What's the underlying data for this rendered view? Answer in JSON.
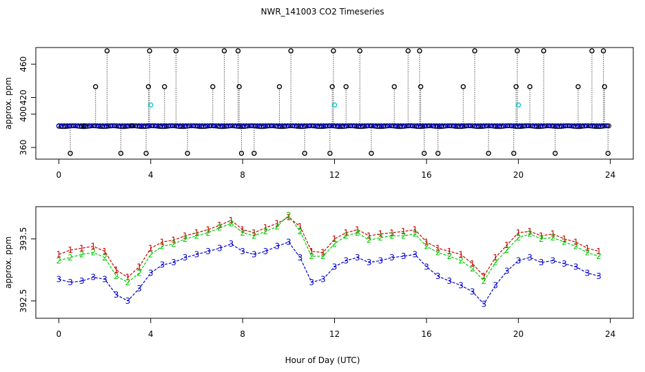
{
  "title": "NWR_141003  CO2 Timeseries",
  "xlabel": "Hour of Day (UTC)",
  "chart_data": [
    {
      "type": "scatter",
      "ylabel": "approx. ppm",
      "xlim": [
        -1,
        25
      ],
      "ylim": [
        346,
        480
      ],
      "xticks": [
        0,
        4,
        8,
        12,
        16,
        20,
        24
      ],
      "yticks": [
        360,
        400,
        420,
        460
      ],
      "grid": false,
      "colors": {
        "raw": "#000000",
        "mean": "#0000cc",
        "cyan": "#00cccc"
      },
      "series": [
        {
          "values": [
            [
              0.5,
              353
            ],
            [
              1.1,
              386
            ],
            [
              1.6,
              433
            ],
            [
              2.1,
              476
            ],
            [
              2.7,
              353
            ],
            [
              3.2,
              386
            ],
            [
              3.8,
              353
            ],
            [
              3.9,
              433
            ],
            [
              3.95,
              476
            ],
            [
              4.6,
              433
            ],
            [
              5.1,
              476
            ],
            [
              5.6,
              353
            ],
            [
              6.7,
              433
            ],
            [
              7.2,
              476
            ],
            [
              7.8,
              476
            ],
            [
              7.85,
              433
            ],
            [
              7.95,
              353
            ],
            [
              8.5,
              353
            ],
            [
              9.6,
              433
            ],
            [
              10.1,
              476
            ],
            [
              10.7,
              353
            ],
            [
              11.8,
              353
            ],
            [
              11.9,
              433
            ],
            [
              11.95,
              476
            ],
            [
              12.5,
              433
            ],
            [
              13.1,
              476
            ],
            [
              13.6,
              353
            ],
            [
              14.6,
              433
            ],
            [
              15.2,
              476
            ],
            [
              15.7,
              476
            ],
            [
              15.75,
              433
            ],
            [
              15.9,
              353
            ],
            [
              16.5,
              353
            ],
            [
              17.6,
              433
            ],
            [
              18.1,
              476
            ],
            [
              18.7,
              353
            ],
            [
              19.8,
              353
            ],
            [
              19.9,
              433
            ],
            [
              19.95,
              476
            ],
            [
              20.5,
              433
            ],
            [
              21.1,
              476
            ],
            [
              21.6,
              353
            ],
            [
              22.6,
              433
            ],
            [
              23.2,
              476
            ],
            [
              23.7,
              476
            ],
            [
              23.75,
              433
            ],
            [
              23.9,
              353
            ]
          ]
        },
        {
          "values": [
            [
              4.0,
              411
            ],
            [
              12.0,
              411
            ],
            [
              20.0,
              411
            ]
          ]
        }
      ],
      "baseline": 386
    },
    {
      "type": "line",
      "ylabel": "approx. ppm",
      "xlim": [
        -1,
        25
      ],
      "ylim": [
        392.22,
        394.02
      ],
      "xticks": [
        0,
        4,
        8,
        12,
        16,
        20,
        24
      ],
      "yticks": [
        392.5,
        393.5
      ],
      "grid": false,
      "series": [
        {
          "marker": "1",
          "color": "#cc0000",
          "x": [
            0,
            0.5,
            1,
            1.5,
            2,
            2.5,
            3,
            3.5,
            4,
            4.5,
            5,
            5.5,
            6,
            6.5,
            7,
            7.5,
            8,
            8.5,
            9,
            9.5,
            10,
            10.5,
            11,
            11.5,
            12,
            12.5,
            13,
            13.5,
            14,
            14.5,
            15,
            15.5,
            16,
            16.5,
            17,
            17.5,
            18,
            18.5,
            19,
            19.5,
            20,
            20.5,
            21,
            21.5,
            22,
            22.5,
            23,
            23.5
          ],
          "values": [
            393.25,
            393.32,
            393.35,
            393.38,
            393.3,
            393.0,
            392.88,
            393.05,
            393.35,
            393.45,
            393.48,
            393.55,
            393.6,
            393.65,
            393.72,
            393.8,
            393.65,
            393.6,
            393.68,
            393.75,
            393.85,
            393.7,
            393.3,
            393.28,
            393.5,
            393.6,
            393.65,
            393.55,
            393.58,
            393.6,
            393.62,
            393.65,
            393.45,
            393.35,
            393.3,
            393.25,
            393.1,
            392.9,
            393.2,
            393.4,
            393.6,
            393.62,
            393.55,
            393.58,
            393.5,
            393.45,
            393.35,
            393.3
          ]
        },
        {
          "marker": "2",
          "color": "#00cc00",
          "x": [
            0,
            0.5,
            1,
            1.5,
            2,
            2.5,
            3,
            3.5,
            4,
            4.5,
            5,
            5.5,
            6,
            6.5,
            7,
            7.5,
            8,
            8.5,
            9,
            9.5,
            10,
            10.5,
            11,
            11.5,
            12,
            12.5,
            13,
            13.5,
            14,
            14.5,
            15,
            15.5,
            16,
            16.5,
            17,
            17.5,
            18,
            18.5,
            19,
            19.5,
            20,
            20.5,
            21,
            21.5,
            22,
            22.5,
            23,
            23.5
          ],
          "values": [
            393.15,
            393.2,
            393.25,
            393.28,
            393.2,
            392.9,
            392.8,
            392.95,
            393.25,
            393.38,
            393.42,
            393.5,
            393.55,
            393.6,
            393.68,
            393.75,
            393.6,
            393.55,
            393.62,
            393.7,
            393.88,
            393.62,
            393.22,
            393.22,
            393.42,
            393.55,
            393.6,
            393.48,
            393.52,
            393.55,
            393.55,
            393.58,
            393.38,
            393.28,
            393.22,
            393.15,
            393.02,
            392.82,
            393.12,
            393.32,
            393.52,
            393.58,
            393.5,
            393.52,
            393.45,
            393.38,
            393.28,
            393.22
          ]
        },
        {
          "marker": "3",
          "color": "#0000cc",
          "x": [
            0,
            0.5,
            1,
            1.5,
            2,
            2.5,
            3,
            3.5,
            4,
            4.5,
            5,
            5.5,
            6,
            6.5,
            7,
            7.5,
            8,
            8.5,
            9,
            9.5,
            10,
            10.5,
            11,
            11.5,
            12,
            12.5,
            13,
            13.5,
            14,
            14.5,
            15,
            15.5,
            16,
            16.5,
            17,
            17.5,
            18,
            18.5,
            19,
            19.5,
            20,
            20.5,
            21,
            21.5,
            22,
            22.5,
            23,
            23.5
          ],
          "values": [
            392.85,
            392.8,
            392.82,
            392.88,
            392.85,
            392.6,
            392.5,
            392.7,
            392.95,
            393.08,
            393.12,
            393.2,
            393.25,
            393.3,
            393.35,
            393.42,
            393.3,
            393.25,
            393.3,
            393.38,
            393.45,
            393.2,
            392.8,
            392.85,
            393.05,
            393.15,
            393.2,
            393.12,
            393.15,
            393.2,
            393.22,
            393.25,
            393.05,
            392.9,
            392.82,
            392.75,
            392.65,
            392.45,
            392.75,
            392.98,
            393.15,
            393.2,
            393.12,
            393.15,
            393.1,
            393.05,
            392.95,
            392.9
          ]
        }
      ]
    }
  ]
}
